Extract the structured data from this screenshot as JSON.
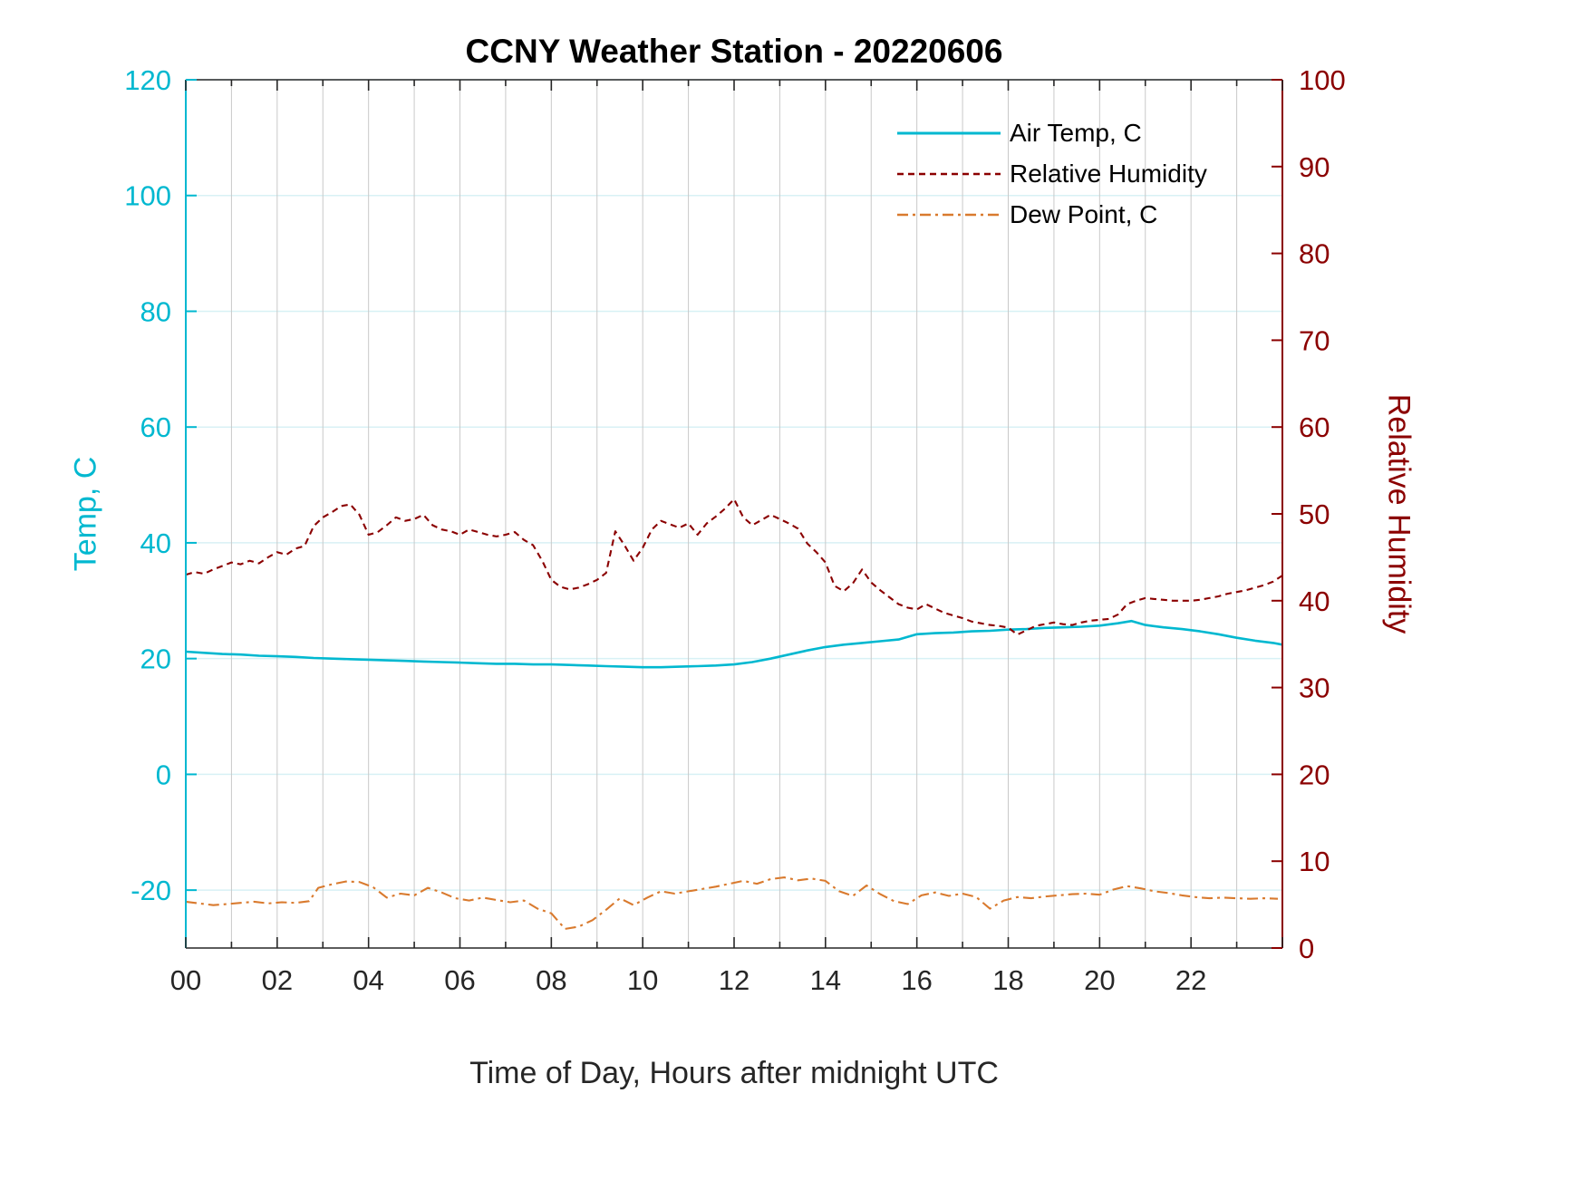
{
  "chart_data": {
    "type": "line",
    "title": "CCNY Weather Station - 20220606",
    "xlabel": "Time of Day, Hours after midnight UTC",
    "ylabel_left": "Temp, C",
    "ylabel_right": "Relative Humidity",
    "xlim": [
      0,
      24
    ],
    "ylim_left": [
      -30,
      120
    ],
    "ylim_right": [
      0,
      100
    ],
    "grid": true,
    "x_ticks": {
      "values": [
        0,
        2,
        4,
        6,
        8,
        10,
        12,
        14,
        16,
        18,
        20,
        22
      ],
      "labels": [
        "00",
        "02",
        "04",
        "06",
        "08",
        "10",
        "12",
        "14",
        "16",
        "18",
        "20",
        "22"
      ]
    },
    "left_ticks": [
      -20,
      0,
      20,
      40,
      60,
      80,
      100,
      120
    ],
    "right_ticks": [
      0,
      10,
      20,
      30,
      40,
      50,
      60,
      70,
      80,
      90,
      100
    ],
    "colors": {
      "left_axis": "#00b8d0",
      "right_axis": "#8b0000",
      "dew_point": "#d97a2e",
      "grid_x": "#c9c9c9",
      "grid_y": "#d8f1f5",
      "frame": "#262626",
      "tick_text": "#262626"
    },
    "legend": {
      "position": "upper right",
      "entries": [
        {
          "label": "Air Temp, C",
          "color": "#00b8d0",
          "style": "solid"
        },
        {
          "label": "Relative Humidity",
          "color": "#8b0000",
          "style": "dashed"
        },
        {
          "label": "Dew Point, C",
          "color": "#d97a2e",
          "style": "dashdot"
        }
      ]
    },
    "series": [
      {
        "name": "Air Temp, C",
        "axis": "left",
        "color": "#00b8d0",
        "style": "solid",
        "x": [
          0,
          0.4,
          0.8,
          1.2,
          1.6,
          2.0,
          2.4,
          2.8,
          3.2,
          3.6,
          4.0,
          4.4,
          4.8,
          5.2,
          5.6,
          6.0,
          6.4,
          6.8,
          7.2,
          7.6,
          8.0,
          8.4,
          8.8,
          9.2,
          9.6,
          10.0,
          10.4,
          10.8,
          11.2,
          11.6,
          12.0,
          12.4,
          12.8,
          13.2,
          13.6,
          14.0,
          14.4,
          14.8,
          15.2,
          15.6,
          16.0,
          16.4,
          16.8,
          17.2,
          17.6,
          18.0,
          18.4,
          18.8,
          19.2,
          19.6,
          20.0,
          20.4,
          20.7,
          21.0,
          21.4,
          21.8,
          22.2,
          22.6,
          23.0,
          23.4,
          23.8,
          24.0
        ],
        "values": [
          21.2,
          21.0,
          20.8,
          20.7,
          20.5,
          20.4,
          20.3,
          20.1,
          20.0,
          19.9,
          19.8,
          19.7,
          19.6,
          19.5,
          19.4,
          19.3,
          19.2,
          19.1,
          19.1,
          19.0,
          19.0,
          18.9,
          18.8,
          18.7,
          18.6,
          18.5,
          18.5,
          18.6,
          18.7,
          18.8,
          19.0,
          19.4,
          20.0,
          20.7,
          21.4,
          22.0,
          22.4,
          22.7,
          23.0,
          23.3,
          24.2,
          24.4,
          24.5,
          24.7,
          24.8,
          25.0,
          25.1,
          25.3,
          25.4,
          25.5,
          25.7,
          26.1,
          26.5,
          25.8,
          25.4,
          25.1,
          24.7,
          24.2,
          23.6,
          23.1,
          22.7,
          22.4
        ]
      },
      {
        "name": "Relative Humidity",
        "axis": "right",
        "color": "#8b0000",
        "style": "dashed",
        "x": [
          0,
          0.2,
          0.4,
          0.6,
          0.8,
          1,
          1.2,
          1.4,
          1.6,
          1.8,
          2,
          2.2,
          2.4,
          2.6,
          2.8,
          3,
          3.2,
          3.4,
          3.6,
          3.8,
          4,
          4.2,
          4.4,
          4.6,
          4.8,
          5,
          5.2,
          5.4,
          5.6,
          5.8,
          6,
          6.2,
          6.4,
          6.6,
          6.8,
          7,
          7.2,
          7.4,
          7.6,
          7.8,
          8,
          8.2,
          8.4,
          8.6,
          8.8,
          9,
          9.2,
          9.4,
          9.6,
          9.8,
          10,
          10.2,
          10.4,
          10.6,
          10.8,
          11,
          11.2,
          11.4,
          11.6,
          11.8,
          12,
          12.2,
          12.4,
          12.6,
          12.8,
          13,
          13.2,
          13.4,
          13.6,
          13.8,
          14,
          14.2,
          14.4,
          14.6,
          14.8,
          15,
          15.2,
          15.4,
          15.6,
          15.8,
          16,
          16.2,
          16.4,
          16.6,
          16.8,
          17,
          17.2,
          17.4,
          17.6,
          17.8,
          18,
          18.2,
          18.4,
          18.6,
          18.8,
          19,
          19.2,
          19.4,
          19.6,
          19.8,
          20,
          20.2,
          20.4,
          20.6,
          20.8,
          21,
          21.2,
          21.4,
          21.6,
          21.8,
          22,
          22.2,
          22.4,
          22.6,
          22.8,
          23,
          23.2,
          23.4,
          23.6,
          23.8,
          24
        ],
        "values": [
          43.0,
          43.3,
          43.1,
          43.6,
          44.0,
          44.4,
          44.2,
          44.6,
          44.3,
          45.0,
          45.6,
          45.3,
          46.0,
          46.3,
          48.6,
          49.6,
          50.2,
          50.9,
          51.1,
          49.9,
          47.6,
          47.9,
          48.7,
          49.6,
          49.2,
          49.4,
          49.9,
          48.7,
          48.2,
          48.0,
          47.6,
          48.2,
          47.9,
          47.6,
          47.4,
          47.6,
          47.9,
          47.0,
          46.4,
          44.6,
          42.4,
          41.6,
          41.3,
          41.5,
          41.9,
          42.4,
          43.2,
          48.0,
          46.4,
          44.6,
          46.1,
          48.2,
          49.2,
          48.8,
          48.4,
          48.9,
          47.6,
          48.9,
          49.7,
          50.6,
          51.7,
          49.6,
          48.7,
          49.3,
          49.9,
          49.4,
          48.9,
          48.3,
          46.6,
          45.6,
          44.4,
          41.7,
          41.1,
          42.0,
          43.6,
          42.1,
          41.2,
          40.4,
          39.6,
          39.2,
          39.0,
          39.6,
          39.1,
          38.6,
          38.3,
          38.0,
          37.6,
          37.4,
          37.2,
          37.1,
          36.9,
          36.1,
          36.6,
          37.1,
          37.3,
          37.5,
          37.3,
          37.2,
          37.5,
          37.7,
          37.8,
          37.9,
          38.4,
          39.6,
          40.0,
          40.3,
          40.2,
          40.1,
          40.0,
          40.0,
          40.0,
          40.1,
          40.3,
          40.5,
          40.8,
          41.0,
          41.2,
          41.5,
          41.8,
          42.2,
          42.9
        ]
      },
      {
        "name": "Dew Point, C",
        "axis": "left",
        "color": "#d97a2e",
        "style": "dashdot",
        "x": [
          0,
          0.3,
          0.6,
          0.9,
          1.2,
          1.5,
          1.8,
          2.1,
          2.4,
          2.7,
          2.9,
          3.2,
          3.5,
          3.8,
          4.1,
          4.4,
          4.7,
          5.0,
          5.3,
          5.6,
          5.9,
          6.2,
          6.5,
          6.8,
          7.1,
          7.4,
          7.7,
          8.0,
          8.3,
          8.6,
          8.9,
          9.2,
          9.5,
          9.8,
          10.1,
          10.4,
          10.7,
          11.0,
          11.3,
          11.6,
          11.9,
          12.2,
          12.5,
          12.8,
          13.1,
          13.4,
          13.7,
          14.0,
          14.3,
          14.6,
          14.9,
          15.2,
          15.5,
          15.8,
          16.1,
          16.4,
          16.7,
          17.0,
          17.3,
          17.6,
          17.9,
          18.2,
          18.5,
          18.8,
          19.1,
          19.4,
          19.7,
          20.0,
          20.3,
          20.6,
          20.9,
          21.2,
          21.5,
          21.8,
          22.1,
          22.4,
          22.7,
          23.0,
          23.3,
          23.6,
          23.9
        ],
        "values": [
          -22.0,
          -22.3,
          -22.6,
          -22.4,
          -22.2,
          -22.0,
          -22.3,
          -22.1,
          -22.2,
          -21.9,
          -19.6,
          -19.0,
          -18.5,
          -18.6,
          -19.5,
          -21.3,
          -20.6,
          -20.9,
          -19.6,
          -20.4,
          -21.4,
          -21.8,
          -21.3,
          -21.7,
          -22.1,
          -21.8,
          -23.2,
          -24.0,
          -26.7,
          -26.3,
          -25.2,
          -23.4,
          -21.4,
          -22.6,
          -21.3,
          -20.2,
          -20.6,
          -20.2,
          -19.8,
          -19.4,
          -18.9,
          -18.4,
          -18.9,
          -18.1,
          -17.8,
          -18.3,
          -18.0,
          -18.4,
          -20.2,
          -21.0,
          -19.2,
          -20.7,
          -21.9,
          -22.4,
          -20.9,
          -20.4,
          -21.0,
          -20.6,
          -21.2,
          -23.2,
          -21.8,
          -21.2,
          -21.4,
          -21.1,
          -20.9,
          -20.7,
          -20.6,
          -20.8,
          -19.9,
          -19.3,
          -19.7,
          -20.2,
          -20.5,
          -20.9,
          -21.2,
          -21.4,
          -21.3,
          -21.4,
          -21.5,
          -21.4,
          -21.5
        ]
      }
    ]
  }
}
